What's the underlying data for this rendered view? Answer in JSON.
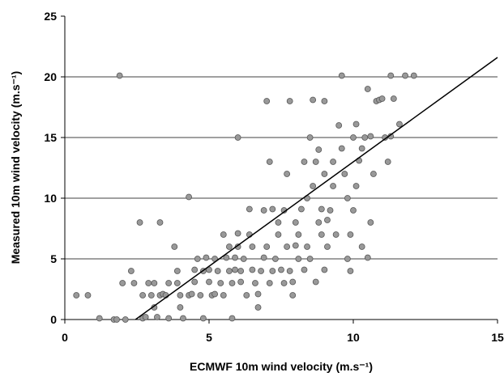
{
  "chart_data": {
    "type": "scatter",
    "x_label": "ECMWF 10m wind velocity (m.s⁻¹)",
    "y_label": "Measured 10m wind velocity (m.s⁻¹)",
    "xlim": [
      0,
      15
    ],
    "xticks": [
      0,
      5,
      10,
      15
    ],
    "ylim": [
      0,
      25
    ],
    "yticks": [
      0,
      5,
      10,
      15,
      20,
      25
    ],
    "grid": true,
    "series": [
      {
        "mode": "markers",
        "color": "#999999",
        "x": [
          0.4,
          0.8,
          1.2,
          1.7,
          1.8,
          1.9,
          2,
          2.1,
          2.3,
          2.4,
          2.6,
          2.7,
          2.7,
          2.8,
          2.9,
          3,
          3.1,
          3.1,
          3.2,
          3.3,
          3.3,
          3.4,
          3.5,
          3.6,
          3.6,
          3.8,
          3.9,
          3.9,
          4,
          4,
          4.1,
          4.3,
          4.3,
          4.4,
          4.5,
          4.5,
          4.6,
          4.7,
          4.8,
          4.8,
          4.9,
          5,
          5,
          5.1,
          5.2,
          5.2,
          5.3,
          5.4,
          5.5,
          5.5,
          5.6,
          5.7,
          5.7,
          5.8,
          5.8,
          5.9,
          5.9,
          6,
          6,
          6,
          6.1,
          6.1,
          6.2,
          6.3,
          6.4,
          6.4,
          6.5,
          6.5,
          6.6,
          6.7,
          6.7,
          6.8,
          6.9,
          6.9,
          7,
          7,
          7.1,
          7.1,
          7.2,
          7.2,
          7.3,
          7.4,
          7.4,
          7.5,
          7.6,
          7.6,
          7.7,
          7.7,
          7.8,
          7.8,
          7.9,
          7.9,
          8,
          8,
          8.1,
          8.1,
          8.2,
          8.3,
          8.3,
          8.4,
          8.4,
          8.5,
          8.5,
          8.6,
          8.6,
          8.7,
          8.7,
          8.8,
          8.8,
          8.9,
          8.9,
          9,
          9,
          9,
          9.1,
          9.1,
          9.2,
          9.3,
          9.3,
          9.4,
          9.5,
          9.6,
          9.6,
          9.7,
          9.8,
          9.8,
          9.9,
          9.9,
          10,
          10,
          10.1,
          10.1,
          10.2,
          10.3,
          10.3,
          10.4,
          10.5,
          10.5,
          10.6,
          10.6,
          10.7,
          10.8,
          10.9,
          11,
          11.1,
          11.2,
          11.3,
          11.3,
          11.4,
          11.6,
          11.8,
          12.1
        ],
        "values": [
          2,
          2,
          0.1,
          0,
          0,
          20.1,
          3,
          0,
          4,
          3,
          8,
          2,
          0.1,
          0.2,
          3,
          2,
          1,
          3,
          0.2,
          8,
          2,
          2.1,
          2,
          3,
          0.1,
          6,
          4,
          3,
          2,
          1,
          0.1,
          10.1,
          2,
          2.1,
          3.1,
          4.1,
          5,
          2,
          0.1,
          4,
          5.1,
          4.1,
          3.1,
          2,
          5,
          2.1,
          4,
          3,
          2,
          7,
          5.1,
          6,
          4,
          0.1,
          3,
          4.1,
          5.1,
          15,
          6,
          7.1,
          4,
          3.1,
          5,
          2,
          9.1,
          7,
          6,
          4.1,
          3,
          1,
          2.1,
          4,
          5.1,
          9,
          18,
          6,
          3,
          13,
          4,
          9.1,
          5,
          7,
          8,
          4.1,
          3,
          9,
          6,
          12,
          4,
          18,
          2,
          3.1,
          6.1,
          8,
          5,
          7,
          9.1,
          4.1,
          13,
          10,
          6,
          15,
          5,
          11,
          18.1,
          13,
          3.1,
          8,
          14,
          7,
          9.1,
          4.1,
          18,
          12,
          6,
          8.2,
          9,
          11,
          13,
          7,
          16,
          20.1,
          14.1,
          12,
          5,
          10,
          7,
          4,
          15,
          9,
          16.1,
          11,
          13.1,
          6,
          14.1,
          15,
          19,
          5.1,
          8,
          15.1,
          12,
          18,
          18.1,
          18.2,
          15,
          13,
          20.1,
          15.1,
          18.2,
          16.1,
          20.1,
          20.1
        ]
      },
      {
        "mode": "line",
        "color": "#000000",
        "x": [
          2.45,
          15
        ],
        "values": [
          0,
          21.6
        ]
      }
    ]
  }
}
